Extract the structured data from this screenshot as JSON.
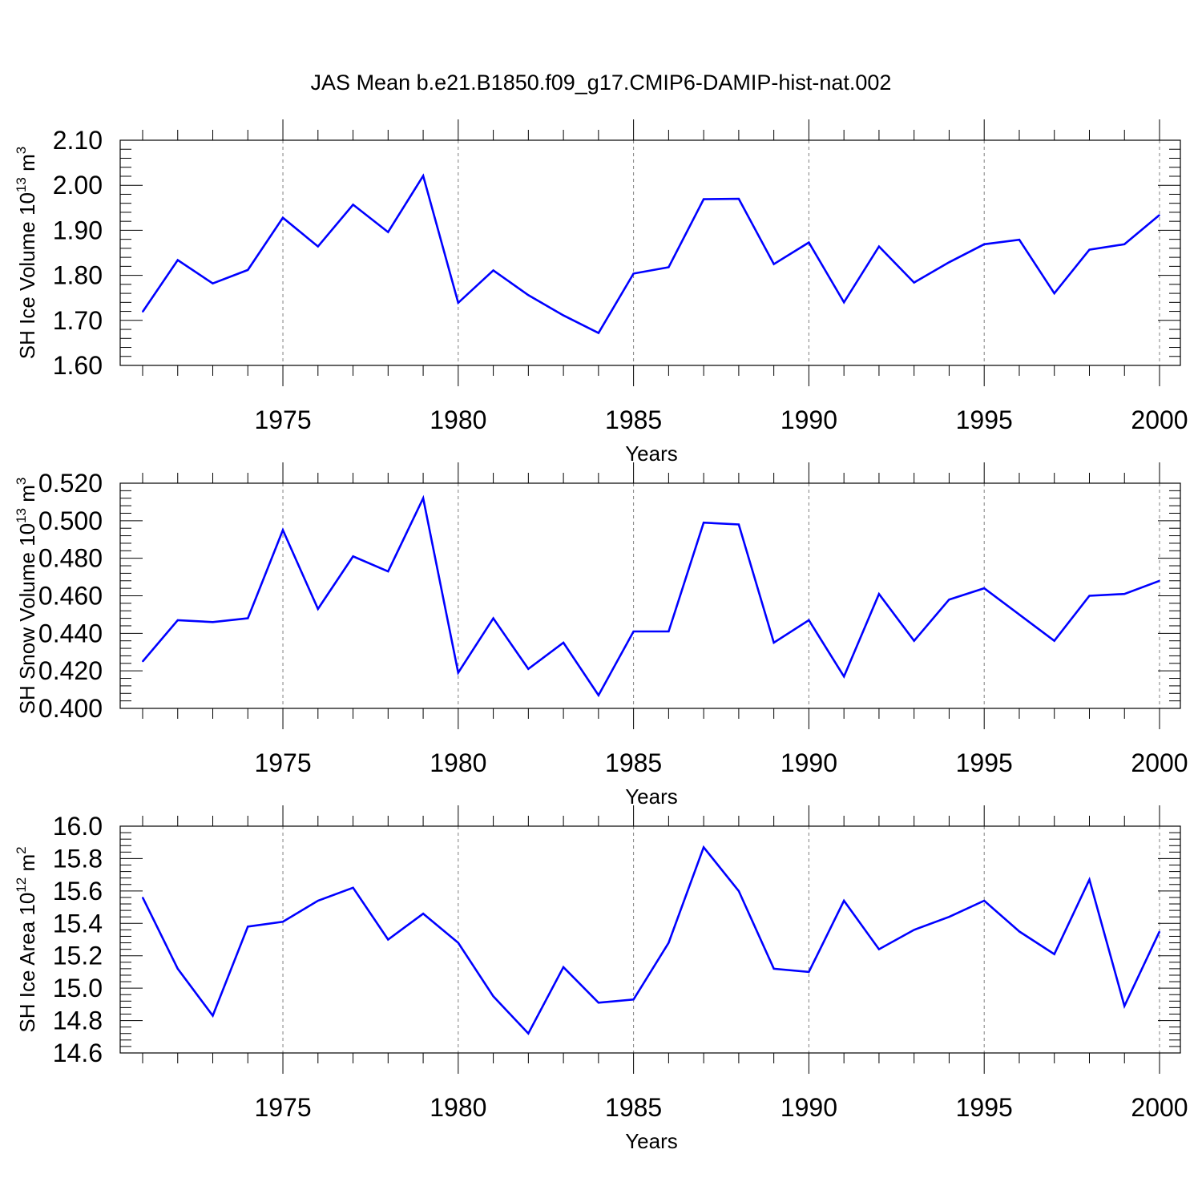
{
  "title": "JAS Mean b.e21.B1850.f09_g17.CMIP6-DAMIP-hist-nat.002",
  "colors": {
    "line": "#0000ff",
    "grid": "#7f7f7f",
    "frame": "#000000"
  },
  "chart_data": [
    {
      "type": "line",
      "title": "",
      "xlabel": "Years",
      "ylabel": {
        "text": "SH Ice Volume 10",
        "sup": "13",
        "unit": " m",
        "unit_sup": "3"
      },
      "xlim": [
        1971,
        2000
      ],
      "ylim": [
        1.6,
        2.1
      ],
      "xticks": [
        1975,
        1980,
        1985,
        1990,
        1995,
        2000
      ],
      "yticks": [
        "1.60",
        "1.70",
        "1.80",
        "1.90",
        "2.00",
        "2.10"
      ],
      "y_minor_step": 0.02,
      "grid": "vertical dashed at major x ticks",
      "x": [
        1971,
        1972,
        1973,
        1974,
        1975,
        1976,
        1977,
        1978,
        1979,
        1980,
        1981,
        1982,
        1983,
        1984,
        1985,
        1986,
        1987,
        1988,
        1989,
        1990,
        1991,
        1992,
        1993,
        1994,
        1995,
        1996,
        1997,
        1998,
        1999,
        2000
      ],
      "series": [
        {
          "values": [
            1.719,
            1.834,
            1.782,
            1.812,
            1.928,
            1.864,
            1.957,
            1.896,
            2.021,
            1.739,
            1.811,
            1.756,
            1.711,
            1.672,
            1.804,
            1.818,
            1.969,
            1.97,
            1.825,
            1.873,
            1.74,
            1.864,
            1.784,
            1.829,
            1.869,
            1.879,
            1.76,
            1.857,
            1.869,
            1.934
          ]
        }
      ]
    },
    {
      "type": "line",
      "title": "",
      "xlabel": "Years",
      "ylabel": {
        "text": "SH Snow Volume 10",
        "sup": "13",
        "unit": " m",
        "unit_sup": "3"
      },
      "xlim": [
        1971,
        2000
      ],
      "ylim": [
        0.4,
        0.52
      ],
      "xticks": [
        1975,
        1980,
        1985,
        1990,
        1995,
        2000
      ],
      "yticks": [
        "0.400",
        "0.420",
        "0.440",
        "0.460",
        "0.480",
        "0.500",
        "0.520"
      ],
      "y_minor_step": 0.004,
      "grid": "vertical dashed at major x ticks",
      "x": [
        1971,
        1972,
        1973,
        1974,
        1975,
        1976,
        1977,
        1978,
        1979,
        1980,
        1981,
        1982,
        1983,
        1984,
        1985,
        1986,
        1987,
        1988,
        1989,
        1990,
        1991,
        1992,
        1993,
        1994,
        1995,
        1996,
        1997,
        1998,
        1999,
        2000
      ],
      "series": [
        {
          "values": [
            0.425,
            0.447,
            0.446,
            0.448,
            0.495,
            0.453,
            0.481,
            0.473,
            0.512,
            0.419,
            0.448,
            0.421,
            0.435,
            0.407,
            0.441,
            0.441,
            0.499,
            0.498,
            0.435,
            0.447,
            0.417,
            0.461,
            0.436,
            0.458,
            0.464,
            0.45,
            0.436,
            0.46,
            0.461,
            0.468
          ]
        }
      ]
    },
    {
      "type": "line",
      "title": "",
      "xlabel": "Years",
      "ylabel": {
        "text": "SH Ice Area 10",
        "sup": "12",
        "unit": " m",
        "unit_sup": "2"
      },
      "xlim": [
        1971,
        2000
      ],
      "ylim": [
        14.6,
        16.0
      ],
      "xticks": [
        1975,
        1980,
        1985,
        1990,
        1995,
        2000
      ],
      "yticks": [
        "14.6",
        "14.8",
        "15.0",
        "15.2",
        "15.4",
        "15.6",
        "15.8",
        "16.0"
      ],
      "y_minor_step": 0.04,
      "grid": "vertical dashed at major x ticks",
      "x": [
        1971,
        1972,
        1973,
        1974,
        1975,
        1976,
        1977,
        1978,
        1979,
        1980,
        1981,
        1982,
        1983,
        1984,
        1985,
        1986,
        1987,
        1988,
        1989,
        1990,
        1991,
        1992,
        1993,
        1994,
        1995,
        1996,
        1997,
        1998,
        1999,
        2000
      ],
      "series": [
        {
          "values": [
            15.56,
            15.12,
            14.83,
            15.38,
            15.41,
            15.54,
            15.62,
            15.3,
            15.46,
            15.28,
            14.95,
            14.72,
            15.13,
            14.91,
            14.93,
            15.28,
            15.87,
            15.6,
            15.12,
            15.1,
            15.54,
            15.24,
            15.36,
            15.44,
            15.54,
            15.35,
            15.21,
            15.67,
            14.89,
            15.35
          ]
        }
      ]
    }
  ]
}
